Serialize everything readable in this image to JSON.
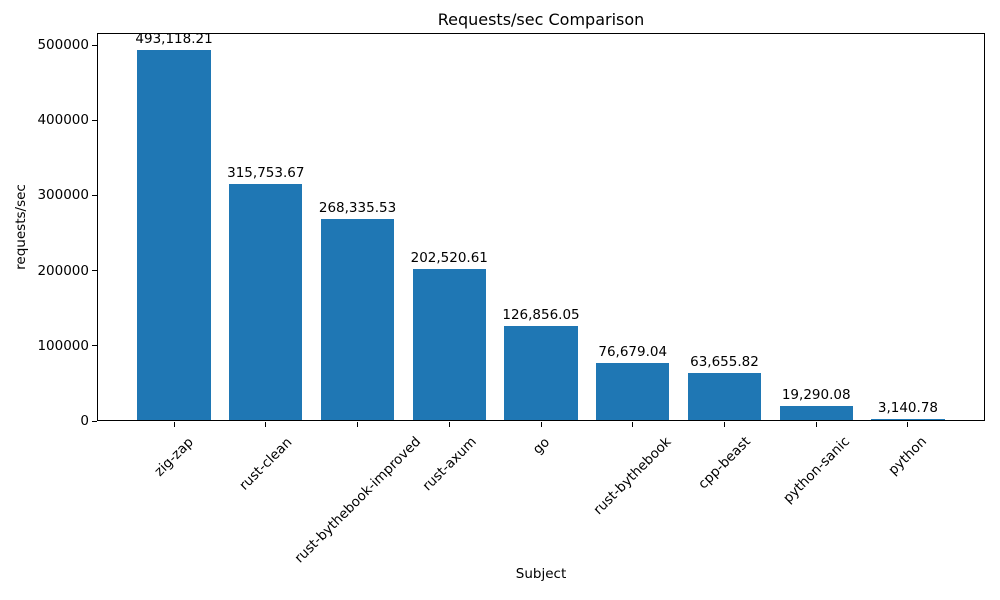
{
  "chart_data": {
    "type": "bar",
    "title": "Requests/sec Comparison",
    "xlabel": "Subject",
    "ylabel": "requests/sec",
    "categories": [
      "zig-zap",
      "rust-clean",
      "rust-bythebook-improved",
      "rust-axum",
      "go",
      "rust-bythebook",
      "cpp-beast",
      "python-sanic",
      "python"
    ],
    "values": [
      493118.21,
      315753.67,
      268335.53,
      202520.61,
      126856.05,
      76679.04,
      63655.82,
      19290.08,
      3140.78
    ],
    "value_labels": [
      "493,118.21",
      "315,753.67",
      "268,335.53",
      "202,520.61",
      "126,856.05",
      "76,679.04",
      "63,655.82",
      "19,290.08",
      "3,140.78"
    ],
    "yticks": [
      0,
      100000,
      200000,
      300000,
      400000,
      500000
    ],
    "ytick_labels": [
      "0",
      "100000",
      "200000",
      "300000",
      "400000",
      "500000"
    ],
    "ylim": [
      0,
      516000
    ],
    "bar_color": "#1f77b4",
    "text_color": "#000000",
    "grid": false,
    "legend": null,
    "xtick_rotation_deg": 45
  }
}
